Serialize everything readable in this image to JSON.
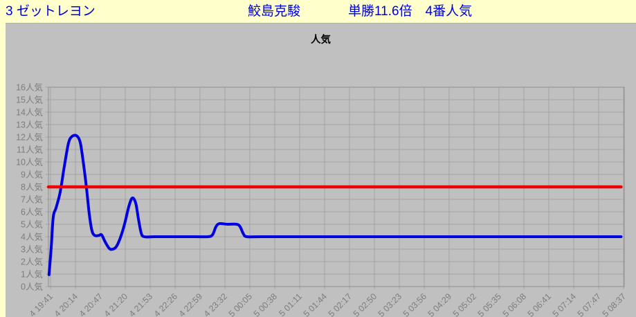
{
  "header": {
    "horse": "3 ゼットレヨン",
    "jockey": "鮫島克駿",
    "odds": "単勝11.6倍　4番人気"
  },
  "colors": {
    "page_bg": "#ffffcc",
    "header_text": "#0000dd",
    "panel_bg": "#c0c0c0",
    "grid": "#a4a4a4",
    "plot_border": "#8e8e8e",
    "tick_label": "#7d7d7d",
    "title": "#000000",
    "line_blue": "#0000e0",
    "line_red": "#ee0000"
  },
  "chart_data": {
    "type": "line",
    "title": "人気",
    "ylim": [
      0,
      16
    ],
    "grid": true,
    "y_tick_labels_top_to_bottom": [
      "16人気",
      "15人気",
      "14人気",
      "13人気",
      "12人気",
      "11人気",
      "10人気",
      "9人気",
      "8人気",
      "7人気",
      "6人気",
      "5人気",
      "4人気",
      "3人気",
      "2人気",
      "1人気",
      "0人気"
    ],
    "x_tick_labels": [
      "4 19:41",
      "4 20:14",
      "4 20:47",
      "4 21:20",
      "4 21:53",
      "4 22:26",
      "4 22:59",
      "4 23:32",
      "5 00:05",
      "5 00:38",
      "5 01:11",
      "5 01:44",
      "5 02:17",
      "5 02:50",
      "5 03:23",
      "5 03:56",
      "5 04:29",
      "5 05:02",
      "5 05:35",
      "5 06:08",
      "5 06:41",
      "5 07:14",
      "5 07:47",
      "5 08:37"
    ],
    "series": [
      {
        "name": "popularity",
        "color": "#0000e0",
        "width": 4,
        "smooth": true,
        "points": [
          [
            -0.06,
            0.95
          ],
          [
            0.03,
            3.2
          ],
          [
            0.11,
            5.6
          ],
          [
            0.22,
            6.3
          ],
          [
            0.39,
            7.6
          ],
          [
            0.55,
            9.6
          ],
          [
            0.72,
            11.5
          ],
          [
            0.86,
            12.05
          ],
          [
            1.05,
            12.1
          ],
          [
            1.19,
            11.6
          ],
          [
            1.3,
            10.2
          ],
          [
            1.44,
            8.0
          ],
          [
            1.55,
            5.9
          ],
          [
            1.66,
            4.5
          ],
          [
            1.78,
            4.1
          ],
          [
            1.94,
            4.1
          ],
          [
            2.05,
            4.15
          ],
          [
            2.19,
            3.6
          ],
          [
            2.36,
            3.05
          ],
          [
            2.5,
            3.0
          ],
          [
            2.64,
            3.2
          ],
          [
            2.8,
            3.9
          ],
          [
            2.97,
            5.0
          ],
          [
            3.14,
            6.4
          ],
          [
            3.28,
            7.1
          ],
          [
            3.42,
            6.7
          ],
          [
            3.53,
            5.4
          ],
          [
            3.64,
            4.3
          ],
          [
            3.76,
            4.0
          ],
          [
            4.2,
            4.0
          ],
          [
            5.0,
            4.0
          ],
          [
            5.8,
            4.0
          ],
          [
            6.31,
            4.0
          ],
          [
            6.5,
            4.15
          ],
          [
            6.64,
            4.8
          ],
          [
            6.78,
            5.05
          ],
          [
            7.1,
            5.0
          ],
          [
            7.47,
            5.0
          ],
          [
            7.61,
            4.8
          ],
          [
            7.75,
            4.2
          ],
          [
            7.89,
            4.0
          ],
          [
            8.5,
            4.0
          ],
          [
            10,
            4.0
          ],
          [
            13,
            4.0
          ],
          [
            16,
            4.0
          ],
          [
            19,
            4.0
          ],
          [
            22.9,
            4.0
          ]
        ]
      },
      {
        "name": "reference-line-8",
        "color": "#ee0000",
        "width": 4.5,
        "smooth": false,
        "points": [
          [
            -0.08,
            8
          ],
          [
            22.9,
            8
          ]
        ]
      }
    ]
  }
}
